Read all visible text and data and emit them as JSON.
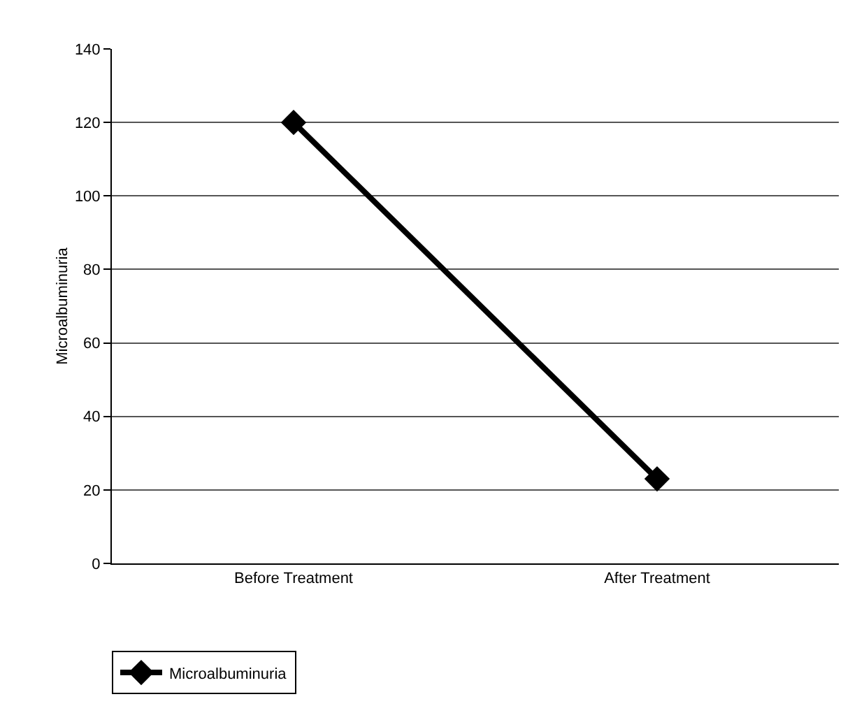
{
  "chart_data": {
    "type": "line",
    "ylabel": "Microalbuminuria",
    "categories": [
      "Before Treatment",
      "After Treatment"
    ],
    "series": [
      {
        "name": "Microalbuminuria",
        "color": "#000000",
        "values": [
          120,
          23
        ]
      }
    ],
    "ylim": [
      0,
      140
    ],
    "yticks": [
      0,
      20,
      40,
      60,
      80,
      100,
      120,
      140
    ],
    "grid": "y",
    "legend": "bottom left",
    "marker": "diamond",
    "line_style": "solid"
  }
}
